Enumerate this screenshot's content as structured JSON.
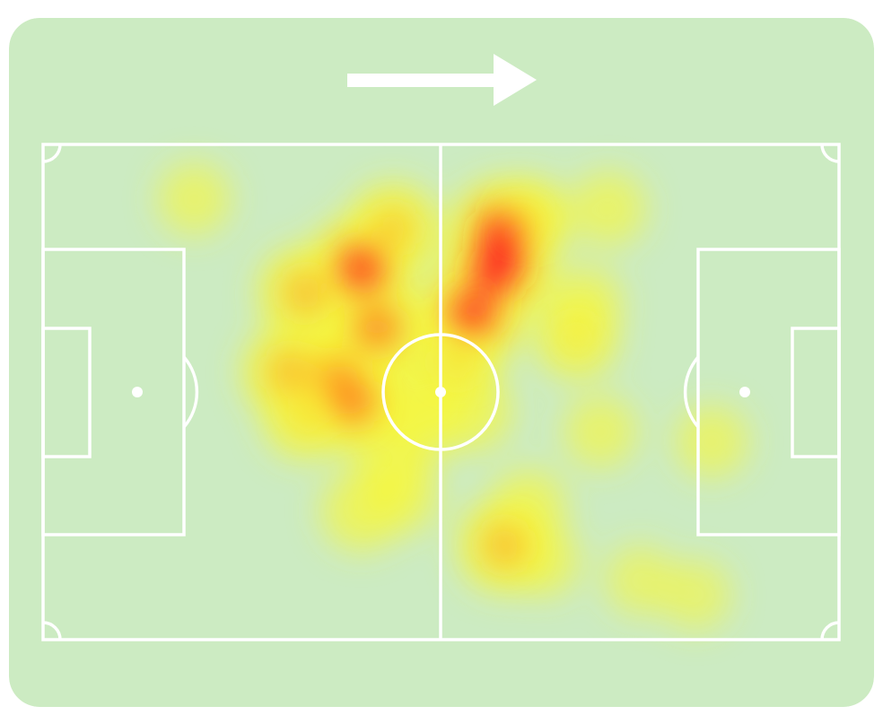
{
  "colors": {
    "card_background": "#ccebc2",
    "pitch_lines": "#ffffff",
    "direction_arrow": "#ffffff",
    "heat_low": "#f7f73a",
    "heat_mid": "#ffa020",
    "heat_high": "#ff2020"
  },
  "icons": {
    "direction": "arrow-right-icon"
  },
  "chart_data": {
    "type": "heatmap",
    "title": "",
    "subtitle": "",
    "xlabel": "",
    "ylabel": "",
    "attack_direction": "left-to-right",
    "x_range": [
      0,
      100
    ],
    "y_range": [
      0,
      100
    ],
    "legend": "none",
    "grid": false,
    "points": [
      {
        "x": 19,
        "y": 11,
        "intensity": 0.35
      },
      {
        "x": 40,
        "y": 25,
        "intensity": 0.95
      },
      {
        "x": 33,
        "y": 30,
        "intensity": 0.75
      },
      {
        "x": 44,
        "y": 17,
        "intensity": 0.7
      },
      {
        "x": 42,
        "y": 37,
        "intensity": 0.85
      },
      {
        "x": 31,
        "y": 46,
        "intensity": 0.75
      },
      {
        "x": 37,
        "y": 47,
        "intensity": 0.8
      },
      {
        "x": 39,
        "y": 52,
        "intensity": 0.85
      },
      {
        "x": 33,
        "y": 55,
        "intensity": 0.6
      },
      {
        "x": 46,
        "y": 51,
        "intensity": 0.5
      },
      {
        "x": 48,
        "y": 56,
        "intensity": 0.45
      },
      {
        "x": 44,
        "y": 64,
        "intensity": 0.45
      },
      {
        "x": 40,
        "y": 74,
        "intensity": 0.5
      },
      {
        "x": 45,
        "y": 71,
        "intensity": 0.4
      },
      {
        "x": 58,
        "y": 18,
        "intensity": 1.0
      },
      {
        "x": 57,
        "y": 25,
        "intensity": 1.0
      },
      {
        "x": 54,
        "y": 34,
        "intensity": 0.95
      },
      {
        "x": 61,
        "y": 15,
        "intensity": 0.55
      },
      {
        "x": 52,
        "y": 44,
        "intensity": 0.6
      },
      {
        "x": 54,
        "y": 54,
        "intensity": 0.45
      },
      {
        "x": 67,
        "y": 39,
        "intensity": 0.55
      },
      {
        "x": 68,
        "y": 32,
        "intensity": 0.4
      },
      {
        "x": 71,
        "y": 13,
        "intensity": 0.4
      },
      {
        "x": 70,
        "y": 58,
        "intensity": 0.35
      },
      {
        "x": 84,
        "y": 60,
        "intensity": 0.35
      },
      {
        "x": 58,
        "y": 81,
        "intensity": 0.75
      },
      {
        "x": 61,
        "y": 73,
        "intensity": 0.4
      },
      {
        "x": 63,
        "y": 84,
        "intensity": 0.35
      },
      {
        "x": 75,
        "y": 88,
        "intensity": 0.3
      },
      {
        "x": 82,
        "y": 91,
        "intensity": 0.3
      }
    ]
  }
}
